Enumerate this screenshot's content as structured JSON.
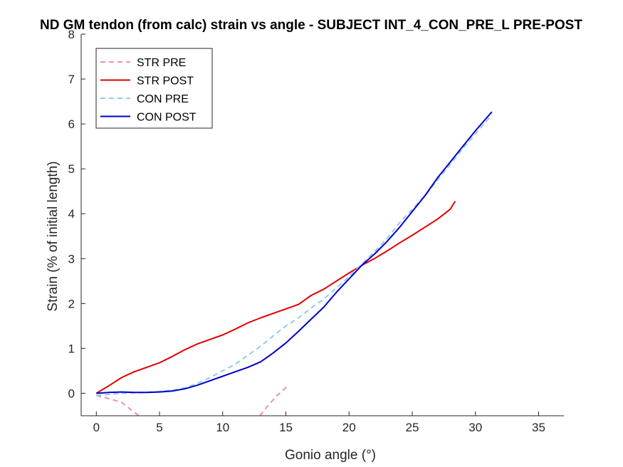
{
  "chart_data": {
    "type": "line",
    "title": "ND GM tendon (from calc) strain vs angle - SUBJECT INT_4_CON_PRE_L PRE-POST",
    "xlabel": "Gonio angle (°)",
    "ylabel": "Strain (% of initial length)",
    "xlim": [
      -1.2,
      37
    ],
    "ylim": [
      -0.5,
      8
    ],
    "xticks": [
      0,
      5,
      10,
      15,
      20,
      25,
      30,
      35
    ],
    "yticks": [
      0,
      1,
      2,
      3,
      4,
      5,
      6,
      7,
      8
    ],
    "grid": false,
    "legend_position": "top-left",
    "series": [
      {
        "name": "STR PRE",
        "color": "#f08cbb",
        "style": "dashed",
        "points": [
          [
            0,
            -0.05
          ],
          [
            1,
            -0.12
          ],
          [
            2,
            -0.2
          ],
          [
            2.8,
            -0.38
          ],
          [
            3.6,
            -0.55
          ],
          [
            12.8,
            -0.55
          ],
          [
            13.5,
            -0.3
          ],
          [
            14.3,
            -0.05
          ],
          [
            15.1,
            0.15
          ]
        ]
      },
      {
        "name": "STR POST",
        "color": "#e00000",
        "style": "solid",
        "points": [
          [
            0,
            0
          ],
          [
            1,
            0.17
          ],
          [
            2,
            0.35
          ],
          [
            3,
            0.48
          ],
          [
            4,
            0.58
          ],
          [
            5,
            0.68
          ],
          [
            6,
            0.82
          ],
          [
            7,
            0.97
          ],
          [
            8,
            1.1
          ],
          [
            9,
            1.2
          ],
          [
            10,
            1.3
          ],
          [
            11,
            1.43
          ],
          [
            12,
            1.57
          ],
          [
            13,
            1.68
          ],
          [
            14,
            1.78
          ],
          [
            15,
            1.88
          ],
          [
            16,
            1.98
          ],
          [
            17,
            2.18
          ],
          [
            18,
            2.32
          ],
          [
            19,
            2.5
          ],
          [
            20,
            2.68
          ],
          [
            21,
            2.85
          ],
          [
            22,
            3.0
          ],
          [
            23,
            3.17
          ],
          [
            24,
            3.35
          ],
          [
            25,
            3.52
          ],
          [
            26,
            3.7
          ],
          [
            27,
            3.88
          ],
          [
            28,
            4.1
          ],
          [
            28.4,
            4.28
          ]
        ]
      },
      {
        "name": "CON PRE",
        "color": "#8ecbf0",
        "style": "dashed",
        "points": [
          [
            0,
            -0.05
          ],
          [
            2,
            0.0
          ],
          [
            4,
            0.02
          ],
          [
            6,
            0.07
          ],
          [
            7,
            0.12
          ],
          [
            8,
            0.22
          ],
          [
            9,
            0.35
          ],
          [
            10,
            0.5
          ],
          [
            11,
            0.65
          ],
          [
            12,
            0.85
          ],
          [
            13,
            1.05
          ],
          [
            14,
            1.28
          ],
          [
            15,
            1.5
          ],
          [
            16,
            1.68
          ],
          [
            17,
            1.9
          ],
          [
            18,
            2.1
          ],
          [
            19,
            2.35
          ],
          [
            20,
            2.6
          ],
          [
            21,
            2.88
          ],
          [
            22,
            3.15
          ],
          [
            23,
            3.45
          ],
          [
            24,
            3.8
          ],
          [
            25,
            4.1
          ],
          [
            26,
            4.4
          ],
          [
            27,
            4.75
          ],
          [
            28,
            5.1
          ],
          [
            29,
            5.45
          ],
          [
            30,
            5.78
          ],
          [
            31.3,
            6.2
          ]
        ]
      },
      {
        "name": "CON POST",
        "color": "#0000cc",
        "style": "solid",
        "points": [
          [
            0,
            0
          ],
          [
            1,
            0.02
          ],
          [
            2,
            0.03
          ],
          [
            3,
            0.02
          ],
          [
            4,
            0.02
          ],
          [
            5,
            0.03
          ],
          [
            6,
            0.05
          ],
          [
            7,
            0.1
          ],
          [
            8,
            0.18
          ],
          [
            9,
            0.28
          ],
          [
            10,
            0.38
          ],
          [
            11,
            0.48
          ],
          [
            12,
            0.58
          ],
          [
            13,
            0.7
          ],
          [
            14,
            0.9
          ],
          [
            15,
            1.12
          ],
          [
            16,
            1.38
          ],
          [
            17,
            1.65
          ],
          [
            18,
            1.92
          ],
          [
            19,
            2.25
          ],
          [
            20,
            2.55
          ],
          [
            21,
            2.85
          ],
          [
            22,
            3.1
          ],
          [
            23,
            3.38
          ],
          [
            24,
            3.7
          ],
          [
            25,
            4.05
          ],
          [
            26,
            4.4
          ],
          [
            27,
            4.8
          ],
          [
            28,
            5.15
          ],
          [
            29,
            5.5
          ],
          [
            30,
            5.85
          ],
          [
            31.3,
            6.27
          ]
        ]
      }
    ]
  }
}
